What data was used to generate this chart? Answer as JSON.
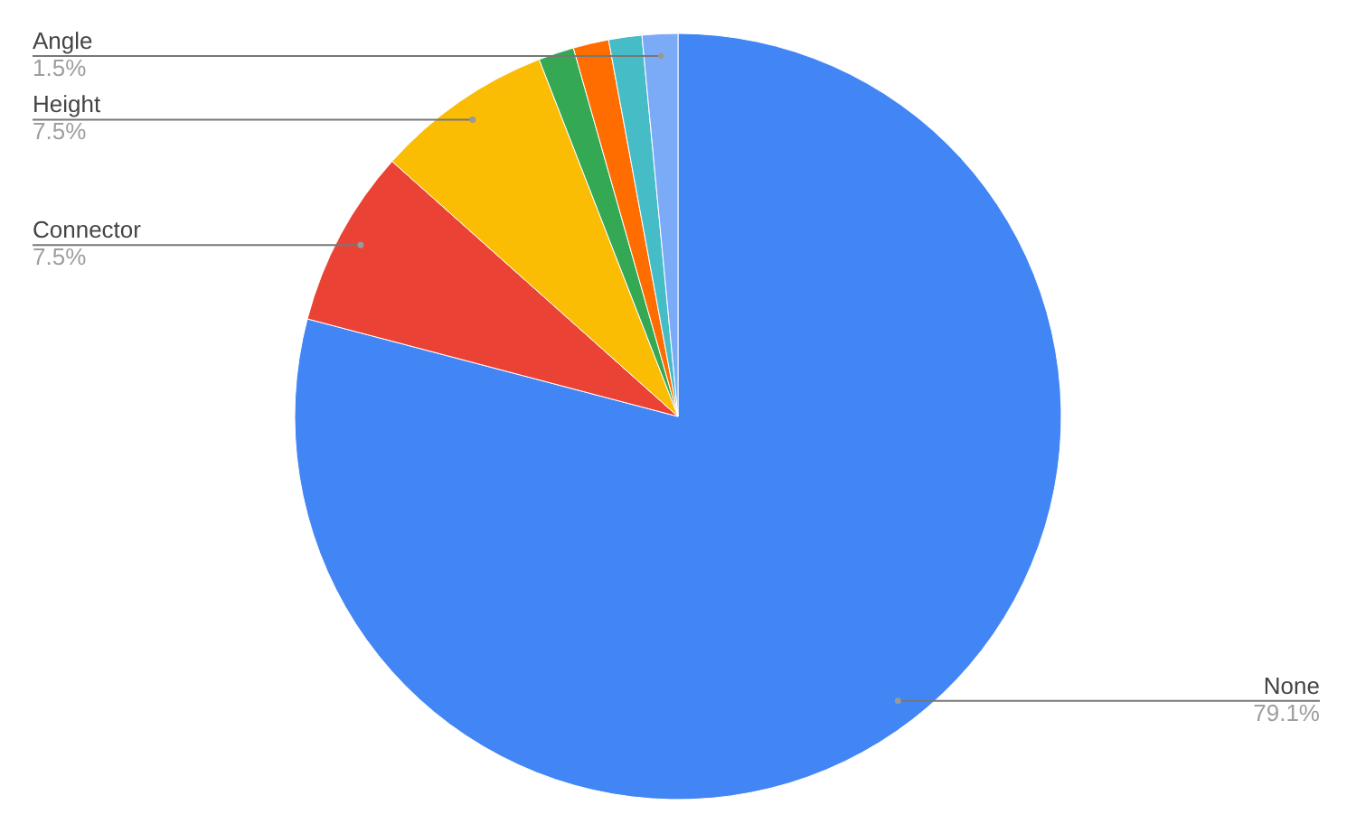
{
  "chart_data": {
    "type": "pie",
    "categories": [
      "None",
      "Connector",
      "Height",
      null,
      null,
      null,
      "Angle"
    ],
    "values": [
      79.1,
      7.5,
      7.5,
      1.5,
      1.5,
      1.4,
      1.5
    ],
    "value_labels": [
      "79.1%",
      "7.5%",
      "7.5%",
      null,
      null,
      null,
      "1.5%"
    ],
    "colors": [
      "#4285f4",
      "#ea4335",
      "#fbbc04",
      "#34a853",
      "#ff6d01",
      "#46bdc6",
      "#7baaf7"
    ]
  }
}
